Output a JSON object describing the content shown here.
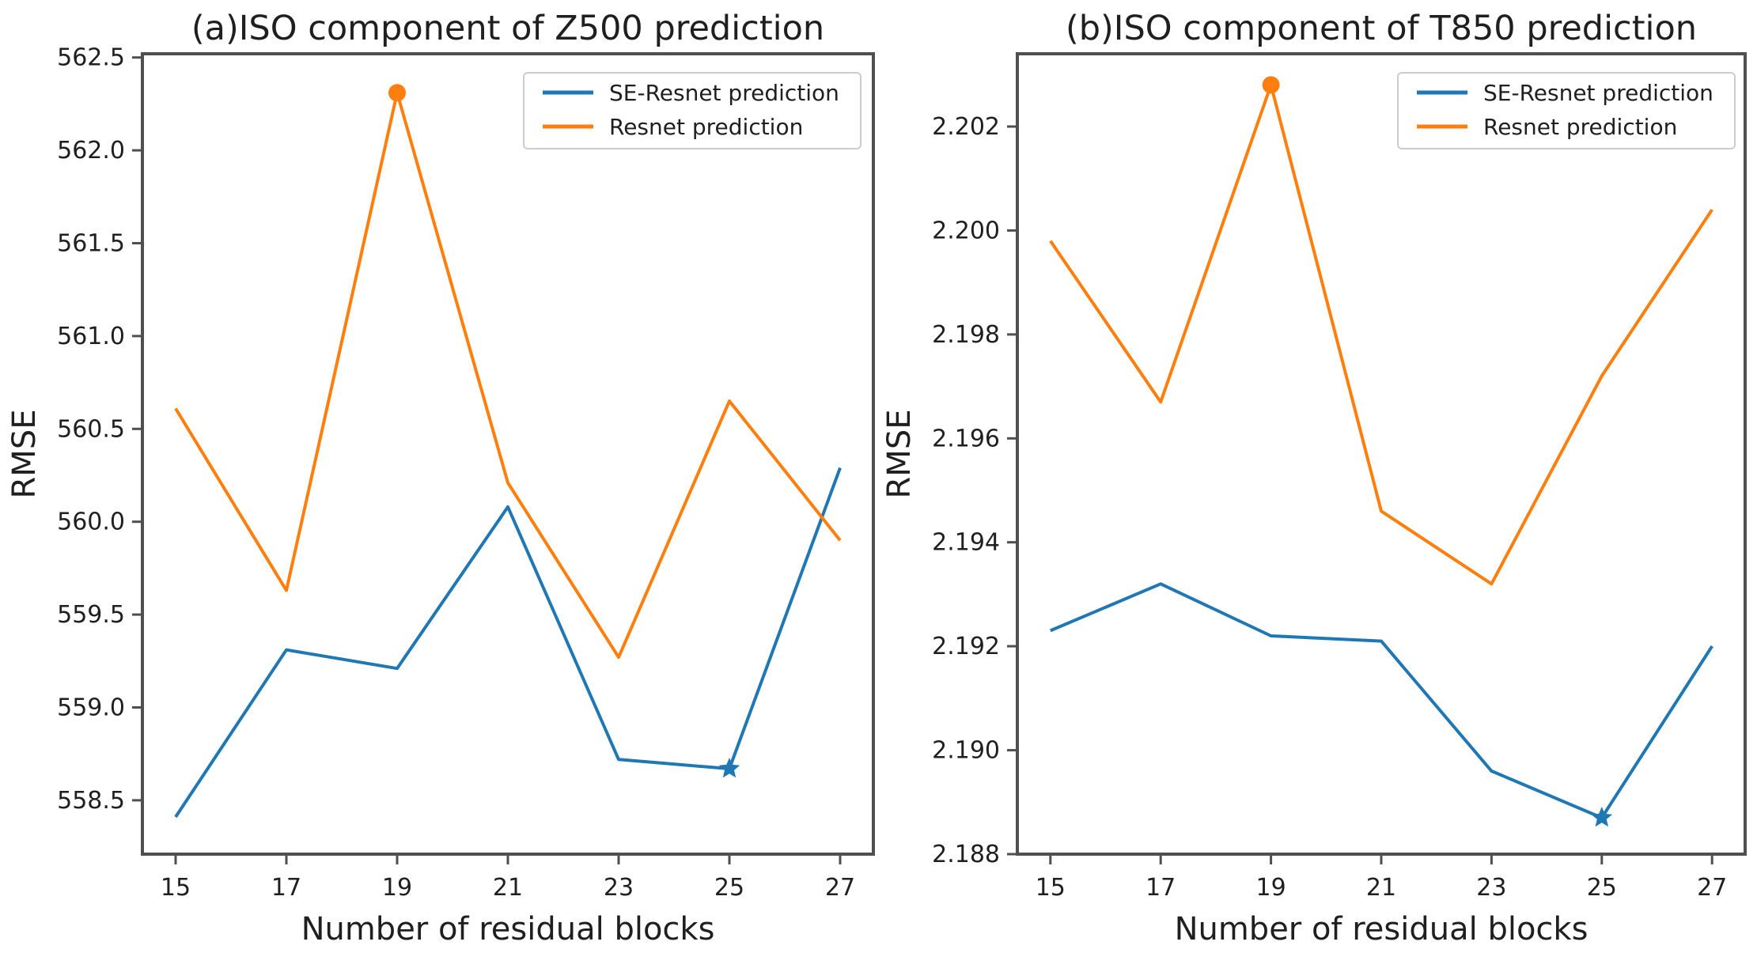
{
  "figure": {
    "background": "#ffffff",
    "spine_color": "#4f4f4f",
    "text_color": "#1f1f1f",
    "legend_border_color": "#cccccc",
    "legend_background": "#ffffff"
  },
  "chart_data": [
    {
      "type": "line",
      "title": "(a)ISO component of Z500 prediction",
      "xlabel": "Number of residual blocks",
      "ylabel": "RMSE",
      "x": [
        15,
        17,
        19,
        21,
        23,
        25,
        27
      ],
      "series": [
        {
          "name": "SE-Resnet prediction",
          "color": "#1f77b4",
          "values": [
            558.41,
            559.31,
            559.21,
            560.08,
            558.72,
            558.67,
            560.29
          ],
          "highlight": {
            "x": 25,
            "value": 558.67,
            "marker": "star"
          }
        },
        {
          "name": "Resnet prediction",
          "color": "#ff7f0e",
          "values": [
            560.61,
            559.63,
            562.31,
            560.21,
            559.27,
            560.65,
            559.9
          ],
          "highlight": {
            "x": 19,
            "value": 562.31,
            "marker": "circle"
          }
        }
      ],
      "xlim": [
        14.4,
        27.6
      ],
      "ylim": [
        558.21,
        562.52
      ],
      "xticks": [
        15,
        17,
        19,
        21,
        23,
        25,
        27
      ],
      "xtick_labels": [
        "15",
        "17",
        "19",
        "21",
        "23",
        "25",
        "27"
      ],
      "yticks": [
        558.5,
        559.0,
        559.5,
        560.0,
        560.5,
        561.0,
        561.5,
        562.0,
        562.5
      ],
      "ytick_labels": [
        "558.5",
        "559.0",
        "559.5",
        "560.0",
        "560.5",
        "561.0",
        "561.5",
        "562.0",
        "562.5"
      ],
      "legend_position": "upper right",
      "grid": false
    },
    {
      "type": "line",
      "title": "(b)ISO component of T850 prediction",
      "xlabel": "Number of residual blocks",
      "ylabel": "RMSE",
      "x": [
        15,
        17,
        19,
        21,
        23,
        25,
        27
      ],
      "series": [
        {
          "name": "SE-Resnet prediction",
          "color": "#1f77b4",
          "values": [
            2.1923,
            2.1932,
            2.1922,
            2.1921,
            2.1896,
            2.1887,
            2.192
          ],
          "highlight": {
            "x": 25,
            "value": 2.1887,
            "marker": "star"
          }
        },
        {
          "name": "Resnet prediction",
          "color": "#ff7f0e",
          "values": [
            2.1998,
            2.1967,
            2.2028,
            2.1946,
            2.1932,
            2.1972,
            2.2004
          ],
          "highlight": {
            "x": 19,
            "value": 2.2028,
            "marker": "circle"
          }
        }
      ],
      "xlim": [
        14.4,
        27.6
      ],
      "ylim": [
        2.188,
        2.2034
      ],
      "xticks": [
        15,
        17,
        19,
        21,
        23,
        25,
        27
      ],
      "xtick_labels": [
        "15",
        "17",
        "19",
        "21",
        "23",
        "25",
        "27"
      ],
      "yticks": [
        2.188,
        2.19,
        2.192,
        2.194,
        2.196,
        2.198,
        2.2,
        2.202
      ],
      "ytick_labels": [
        "2.188",
        "2.190",
        "2.192",
        "2.194",
        "2.196",
        "2.198",
        "2.200",
        "2.202"
      ],
      "legend_position": "upper right",
      "grid": false
    }
  ]
}
